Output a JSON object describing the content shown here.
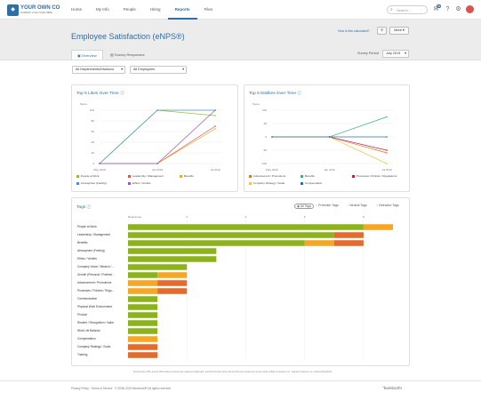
{
  "brand": {
    "name": "YOUR OWN CO",
    "tagline": "COMPANY LOGO GOES HERE"
  },
  "nav": {
    "items": [
      "Home",
      "My Info",
      "People",
      "Hiring",
      "Reports",
      "Files"
    ],
    "active": "Reports"
  },
  "search": {
    "placeholder": "Search..."
  },
  "notifications": {
    "count": "56"
  },
  "header": {
    "title": "Employee Satisfaction (eNPS®)",
    "calc_link": "How is this calculated?",
    "more_label": "More"
  },
  "tabs": {
    "overview": "Overview",
    "survey_responses": "Survey Responses"
  },
  "survey_period": {
    "label": "Survey Period",
    "value": "July 2019"
  },
  "filters": {
    "departments": "All Departments/Divisions",
    "employees": "All Employees"
  },
  "likes": {
    "title": "Top 5 Likes Over Time",
    "chart_data": {
      "type": "line",
      "ylabel": "Score",
      "x": [
        "May 2019",
        "Jan 2019",
        "Jul 2019"
      ],
      "yticks": [
        "100",
        "80",
        "60",
        "40",
        "20",
        "0"
      ],
      "ylim": [
        0,
        100
      ],
      "series": [
        {
          "name": "People at Work",
          "color": "#8fc31f",
          "values": [
            0,
            100,
            90
          ]
        },
        {
          "name": "Leadership / Management",
          "color": "#d9534f",
          "values": [
            0,
            0,
            70
          ]
        },
        {
          "name": "Benefits",
          "color": "#f5a623",
          "values": [
            0,
            0,
            65
          ]
        },
        {
          "name": "Atmosphere (Feeling)",
          "color": "#4a90d9",
          "values": [
            0,
            100,
            100
          ]
        },
        {
          "name": "Ethics / Vonlets",
          "color": "#9b59b6",
          "values": [
            0,
            0,
            100
          ]
        }
      ]
    }
  },
  "dislikes": {
    "title": "Top 5 Dislikes Over Time",
    "chart_data": {
      "type": "line",
      "ylabel": "Score",
      "x": [
        "May 2019",
        "Jan 2019",
        "Jul 2019"
      ],
      "yticks": [
        "100",
        "50",
        "0",
        "-50",
        "-100"
      ],
      "ylim": [
        -100,
        100
      ],
      "series": [
        {
          "name": "Advancement / Promotions",
          "color": "#e8731a",
          "values": [
            0,
            0,
            -60
          ]
        },
        {
          "name": "Benefits",
          "color": "#3bb08f",
          "values": [
            0,
            0,
            75
          ]
        },
        {
          "name": "Processes / Policies / Regulations",
          "color": "#c2185b",
          "values": [
            0,
            0,
            -50
          ]
        },
        {
          "name": "Company Strategy / Goals",
          "color": "#f5c242",
          "values": [
            0,
            0,
            -100
          ]
        },
        {
          "name": "Compensation",
          "color": "#2e6fa7",
          "values": [
            0,
            0,
            0
          ]
        }
      ]
    }
  },
  "tags": {
    "title": "Tags",
    "filters": [
      "All Tags",
      "Promoter Tags",
      "Neutral Tags",
      "Detractor Tags"
    ],
    "colors": {
      "promoter": "#8cb31c",
      "neutral": "#f5a623",
      "detractor": "#e36b2c"
    },
    "chart_data": {
      "type": "bar",
      "orientation": "horizontal",
      "stacked": true,
      "xlabel": "Responses",
      "xticks": [
        "0",
        "2",
        "4",
        "6",
        "8"
      ],
      "xlim": [
        0,
        9
      ],
      "categories": [
        "People at Work",
        "Leadership / Management",
        "Benefits",
        "Atmosphere (Feeling)",
        "Ethics / Vonlets",
        "Company Vision / Mission / ...",
        "Growth (Personal / Professi...",
        "Advancement / Promotions",
        "Processes / Policies / Regu...",
        "Communication",
        "Physical Work Environment",
        "Product",
        "Reward / Recognition / Value",
        "Work Life Balance",
        "Compensation",
        "Company Strategy / Goals",
        "Training"
      ],
      "series": [
        {
          "name": "Promoter",
          "values": [
            8,
            7,
            6,
            3,
            3,
            2,
            1,
            0,
            0,
            1,
            1,
            1,
            1,
            1,
            0,
            0,
            0
          ]
        },
        {
          "name": "Neutral",
          "values": [
            1,
            0,
            1,
            0,
            0,
            0,
            1,
            1,
            1,
            0,
            0,
            0,
            0,
            0,
            1,
            0,
            0
          ]
        },
        {
          "name": "Detractor",
          "values": [
            0,
            1,
            1,
            0,
            0,
            0,
            0,
            1,
            1,
            0,
            0,
            0,
            0,
            0,
            0,
            1,
            1
          ]
        }
      ]
    }
  },
  "footnote": "Net Promoter, NPS, and the NPS-related emoticons are registered trademarks, and Net Promoter Score and Net Promoter System are service marks of Bain & Company, Inc., Satmetrix Systems, Inc. and Fred Reichheld.",
  "footer": {
    "links": "Privacy Policy · Terms of Service · © 2008–2020 BambooHR All rights reserved",
    "logo": "°bamboohr"
  }
}
